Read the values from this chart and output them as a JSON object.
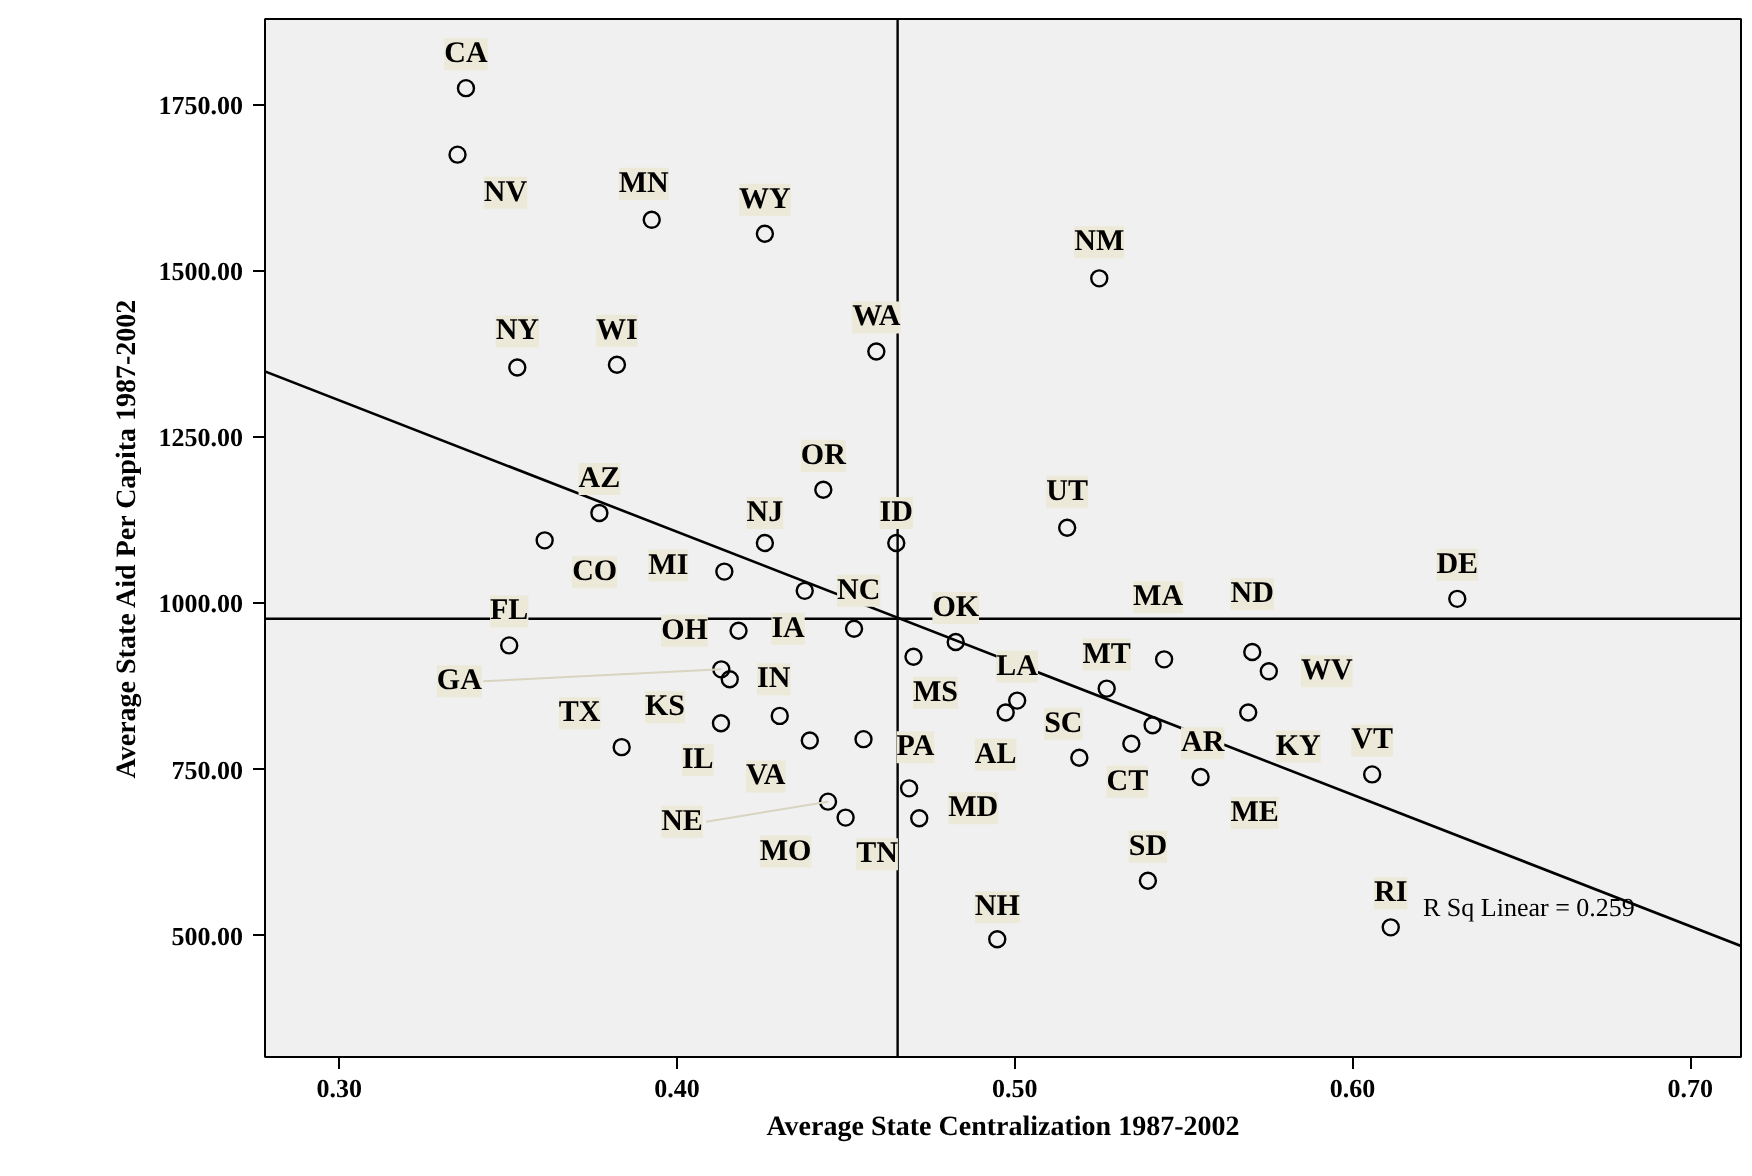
{
  "chart_data": {
    "type": "scatter",
    "xlabel": "Average State Centralization 1987-2002",
    "ylabel": "Average State Aid Per Capita 1987-2002",
    "xlim": [
      0.278,
      0.715
    ],
    "ylim": [
      318,
      1879
    ],
    "xticks": [
      {
        "value": 0.3,
        "label": "0.30"
      },
      {
        "value": 0.4,
        "label": "0.40"
      },
      {
        "value": 0.5,
        "label": "0.50"
      },
      {
        "value": 0.6,
        "label": "0.60"
      },
      {
        "value": 0.7,
        "label": "0.70"
      }
    ],
    "yticks": [
      {
        "value": 500,
        "label": "500.00"
      },
      {
        "value": 750,
        "label": "750.00"
      },
      {
        "value": 1000,
        "label": "1000.00"
      },
      {
        "value": 1250,
        "label": "1250.00"
      },
      {
        "value": 1500,
        "label": "1500.00"
      },
      {
        "value": 1750,
        "label": "1750.00"
      }
    ],
    "grid": false,
    "marker": "circle",
    "series": [
      {
        "color": "#000000",
        "x": [
          0.3375,
          0.335,
          0.3925,
          0.426,
          0.3527,
          0.3822,
          0.459,
          0.4433,
          0.377,
          0.426,
          0.4649,
          0.3608,
          0.414,
          0.4378,
          0.3503,
          0.4182,
          0.4524,
          0.4131,
          0.4156,
          0.413,
          0.4304,
          0.4393,
          0.3836,
          0.4552,
          0.4447,
          0.4499,
          0.4687,
          0.4717,
          0.47,
          0.4825,
          0.4948,
          0.631,
          0.5442,
          0.5703,
          0.5752,
          0.5272,
          0.5007,
          0.4973,
          0.5191,
          0.5408,
          0.5691,
          0.6058,
          0.5345,
          0.555,
          0.5394,
          0.6113,
          0.5155,
          0.525
        ],
        "values": [
          1775,
          1675,
          1577,
          1556,
          1355,
          1359,
          1379,
          1171,
          1136,
          1091,
          1091,
          1095,
          1048,
          1019,
          937,
          959,
          962,
          901,
          886,
          820,
          831,
          794,
          784,
          796,
          702,
          678,
          722,
          677,
          920,
          942,
          495,
          1007,
          916,
          927,
          898,
          872,
          854,
          836,
          768,
          817,
          836,
          743,
          789,
          739,
          583,
          513,
          1114,
          1489
        ]
      },
      {
        "type": "line",
        "color": "#000000",
        "line_style": "solid",
        "marker": "none",
        "x": [
          0.278,
          0.715
        ],
        "values": [
          1349,
          485
        ]
      }
    ],
    "ref_lines": [
      {
        "axis": "x",
        "value": 0.4653,
        "color": "#000000"
      },
      {
        "axis": "y",
        "value": 977,
        "color": "#000000"
      }
    ],
    "annotations": [
      {
        "text": "CA",
        "x": 0.3375,
        "y": 1775
      },
      {
        "text": "NV",
        "x": 0.335,
        "y": 1675
      },
      {
        "text": "MN",
        "x": 0.3925,
        "y": 1577
      },
      {
        "text": "WY",
        "x": 0.426,
        "y": 1556
      },
      {
        "text": "NY",
        "x": 0.3527,
        "y": 1355
      },
      {
        "text": "WI",
        "x": 0.3822,
        "y": 1359
      },
      {
        "text": "WA",
        "x": 0.459,
        "y": 1379
      },
      {
        "text": "OR",
        "x": 0.4433,
        "y": 1171
      },
      {
        "text": "AZ",
        "x": 0.377,
        "y": 1136
      },
      {
        "text": "NJ",
        "x": 0.426,
        "y": 1091
      },
      {
        "text": "ID",
        "x": 0.4649,
        "y": 1091
      },
      {
        "text": "CO",
        "x": 0.3608,
        "y": 1095
      },
      {
        "text": "MI",
        "x": 0.414,
        "y": 1048
      },
      {
        "text": "NC",
        "x": 0.4378,
        "y": 1019
      },
      {
        "text": "FL",
        "x": 0.3503,
        "y": 937
      },
      {
        "text": "OH",
        "x": 0.4182,
        "y": 959
      },
      {
        "text": "IA",
        "x": 0.4524,
        "y": 962
      },
      {
        "text": "GA",
        "x": 0.4131,
        "y": 901
      },
      {
        "text": "IN",
        "x": 0.4156,
        "y": 886
      },
      {
        "text": "KS",
        "x": 0.413,
        "y": 820
      },
      {
        "text": "IL",
        "x": 0.4304,
        "y": 831
      },
      {
        "text": "VA",
        "x": 0.4393,
        "y": 794
      },
      {
        "text": "TX",
        "x": 0.3836,
        "y": 784
      },
      {
        "text": "PA",
        "x": 0.4552,
        "y": 796
      },
      {
        "text": "NE",
        "x": 0.4447,
        "y": 702
      },
      {
        "text": "MO",
        "x": 0.4499,
        "y": 678
      },
      {
        "text": "TN",
        "x": 0.4687,
        "y": 722
      },
      {
        "text": "MD",
        "x": 0.4717,
        "y": 677
      },
      {
        "text": "MS",
        "x": 0.47,
        "y": 920
      },
      {
        "text": "OK",
        "x": 0.4825,
        "y": 942
      },
      {
        "text": "NH",
        "x": 0.4948,
        "y": 495
      },
      {
        "text": "DE",
        "x": 0.631,
        "y": 1007
      },
      {
        "text": "MA",
        "x": 0.5442,
        "y": 916
      },
      {
        "text": "ND",
        "x": 0.5703,
        "y": 927
      },
      {
        "text": "WV",
        "x": 0.5752,
        "y": 898
      },
      {
        "text": "MT",
        "x": 0.5272,
        "y": 872
      },
      {
        "text": "LA",
        "x": 0.5007,
        "y": 854
      },
      {
        "text": "AL",
        "x": 0.4973,
        "y": 836
      },
      {
        "text": "SC",
        "x": 0.5191,
        "y": 768
      },
      {
        "text": "AR",
        "x": 0.5408,
        "y": 817
      },
      {
        "text": "KY",
        "x": 0.5691,
        "y": 836
      },
      {
        "text": "VT",
        "x": 0.6058,
        "y": 743
      },
      {
        "text": "CT",
        "x": 0.5345,
        "y": 789
      },
      {
        "text": "ME",
        "x": 0.555,
        "y": 739
      },
      {
        "text": "SD",
        "x": 0.5394,
        "y": 583
      },
      {
        "text": "RI",
        "x": 0.6113,
        "y": 513
      },
      {
        "text": "UT",
        "x": 0.5155,
        "y": 1114
      },
      {
        "text": "NM",
        "x": 0.525,
        "y": 1489
      },
      "R Sq Linear = 0.259"
    ]
  }
}
